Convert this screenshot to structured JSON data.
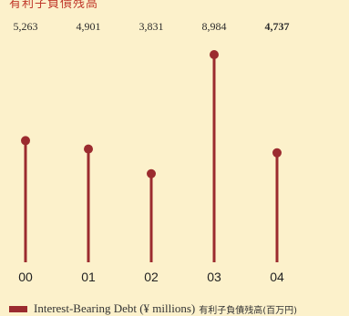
{
  "header": {
    "title_fragment": "有利子負債残高"
  },
  "chart_data": {
    "type": "lollipop",
    "categories": [
      "00",
      "01",
      "02",
      "03",
      "04"
    ],
    "values": [
      5263,
      4901,
      3831,
      8984,
      4737
    ],
    "value_labels": [
      "5,263",
      "4,901",
      "3,831",
      "8,984",
      "4,737"
    ],
    "highlight_index": 4,
    "series": [
      {
        "name": "Interest-Bearing Debt (¥ millions) 有利子負債残高(百万円)",
        "values": [
          5263,
          4901,
          3831,
          8984,
          4737
        ]
      }
    ],
    "ylim": [
      0,
      9500
    ],
    "grid": false,
    "legend_position": "bottom-left",
    "colors": {
      "stem": "#9b2b2f",
      "background": "#fcf1cb"
    }
  },
  "legend": {
    "label_en": "Interest-Bearing Debt (¥ millions)",
    "label_ja": "有利子負債残高(百万円)"
  }
}
